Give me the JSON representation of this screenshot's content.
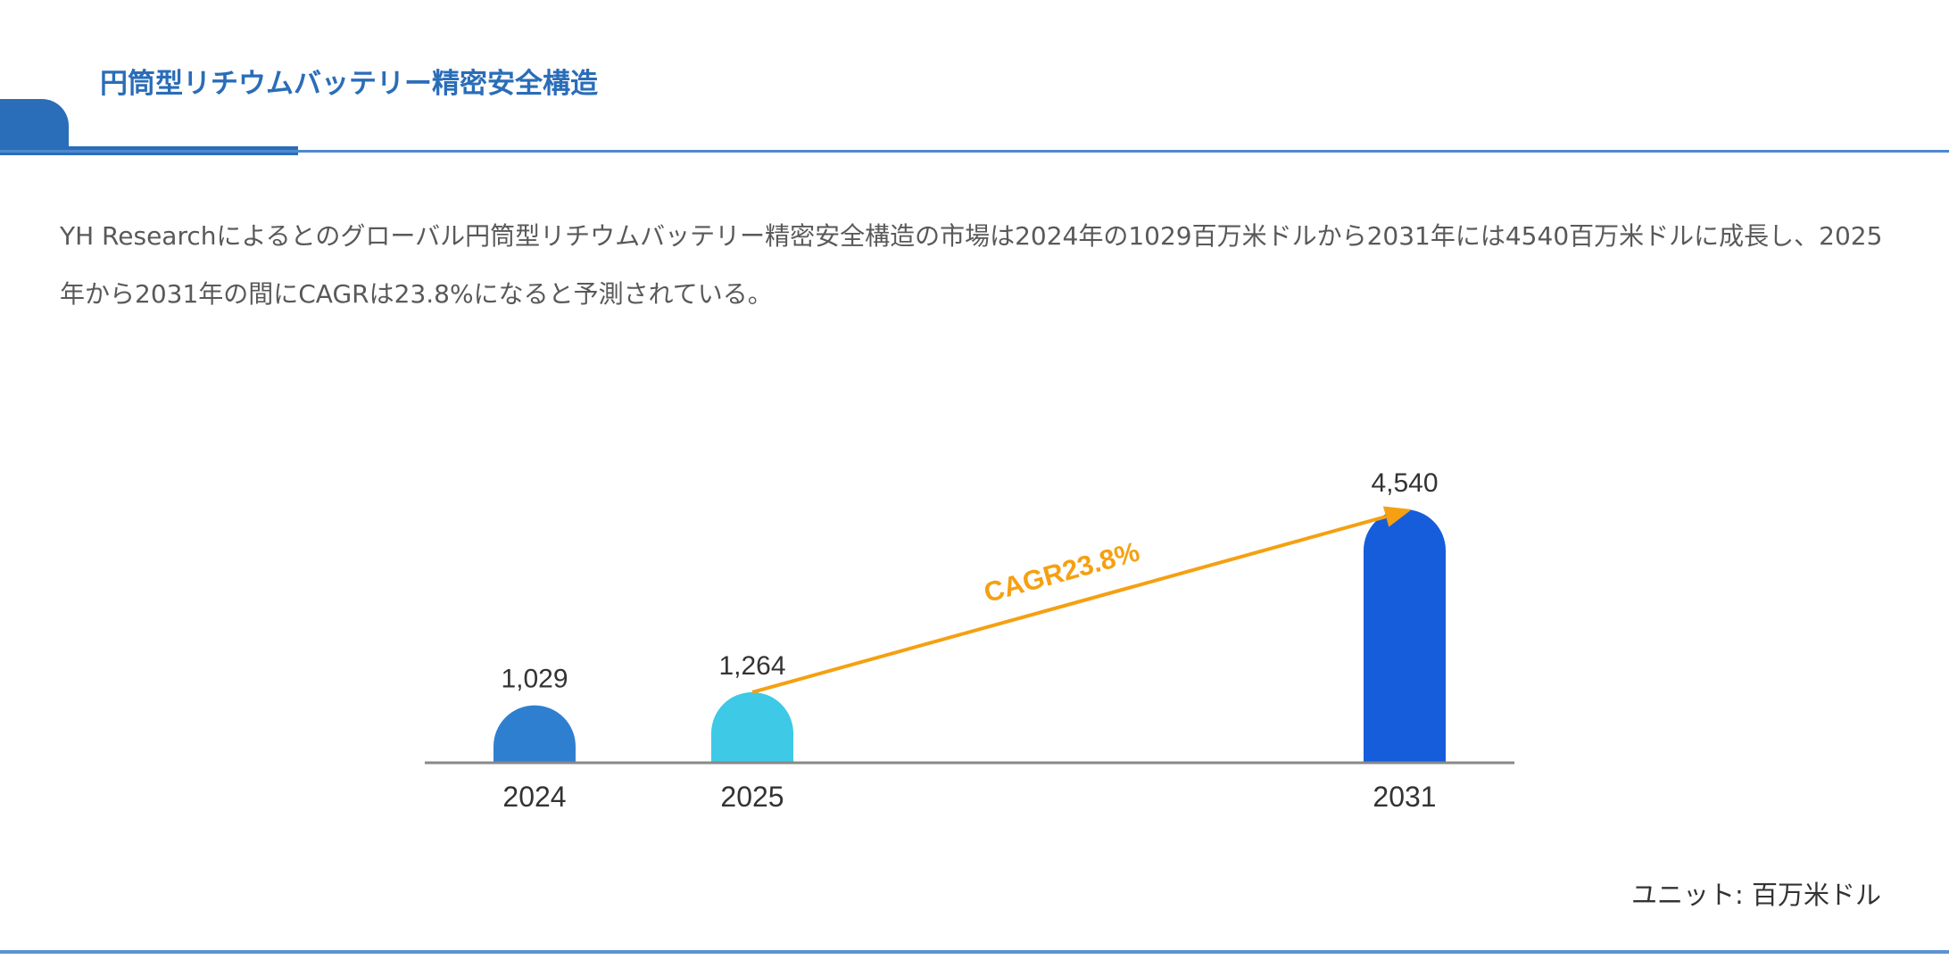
{
  "header": {
    "title": "円筒型リチウムバッテリー精密安全構造"
  },
  "description": "YH Researchによるとのグローバル円筒型リチウムバッテリー精密安全構造の市場は2024年の1029百万米ドルから2031年には4540百万米ドルに成長し、2025年から2031年の間にCAGRは23.8%になると予測されている。",
  "chart_data": {
    "type": "bar",
    "categories": [
      "2024",
      "2025",
      "2031"
    ],
    "values": [
      1029,
      1264,
      4540
    ],
    "value_labels": [
      "1,029",
      "1,264",
      "4,540"
    ],
    "colors": [
      "#2f7fd1",
      "#3ec9e6",
      "#155ddb"
    ],
    "annotation": {
      "text": "CAGR23.8%",
      "from": "2025",
      "to": "2031",
      "color": "#f5a012"
    },
    "unit_label": "ユニット: 百万米ドル",
    "grid": false,
    "ylim": [
      0,
      4540
    ]
  }
}
